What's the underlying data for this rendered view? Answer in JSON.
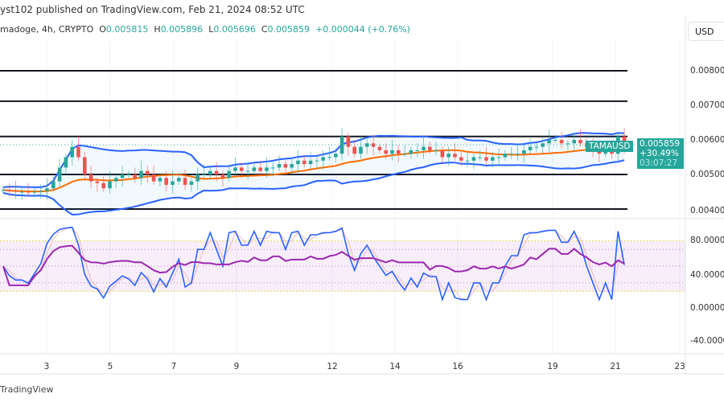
{
  "header": {
    "published": "yst102 published on TradingView.com, Feb 21, 2024 08:52 UTC"
  },
  "legend": {
    "symbol": "madoge, 4h, CRYPTO",
    "o_label": "O",
    "o": "0.005815",
    "h_label": "H",
    "h": "0.005896",
    "l_label": "L",
    "l": "0.005696",
    "c_label": "C",
    "c": "0.005859",
    "change": "+0.000044 (+0.76%)"
  },
  "currency": "USD",
  "price_tag": {
    "symbol": "TAMAUSD",
    "price": "0.005859",
    "change": "+30.49%",
    "countdown": "03:07:27"
  },
  "footer": {
    "brand": "TradingView"
  },
  "colors": {
    "up": "#26a69a",
    "down": "#ef5350",
    "bb": "#2962ff",
    "ma": "#ff6d00",
    "rsi": "#9c27b0",
    "stoch": "#2962ff"
  },
  "chart_data": {
    "type": "candlestick",
    "interval": "4h",
    "price_axis": {
      "ticks": [
        "0.008000",
        "0.007000",
        "0.006000",
        "0.005000",
        "0.004000"
      ],
      "ylim": [
        0.0037,
        0.0088
      ]
    },
    "osc_axis": {
      "ticks": [
        "80.00000",
        "40.00000",
        "0.000000",
        "-40.0000"
      ],
      "ylim": [
        -50,
        110
      ],
      "band": [
        20,
        80
      ]
    },
    "x_ticks": [
      "3",
      "5",
      "7",
      "9",
      "12",
      "14",
      "16",
      "19",
      "21",
      "23"
    ],
    "horizontal_levels": [
      0.008,
      0.00712,
      0.0061,
      0.005,
      0.004
    ],
    "closes": [
      0.00455,
      0.00452,
      0.0045,
      0.0045,
      0.00448,
      0.0045,
      0.00452,
      0.0046,
      0.0048,
      0.0052,
      0.0055,
      0.0058,
      0.0055,
      0.005,
      0.0048,
      0.00475,
      0.0046,
      0.0048,
      0.0049,
      0.005,
      0.005,
      0.0049,
      0.0051,
      0.005,
      0.0048,
      0.0049,
      0.0047,
      0.0048,
      0.0049,
      0.0047,
      0.0048,
      0.005,
      0.005,
      0.0051,
      0.005,
      0.0049,
      0.0051,
      0.0052,
      0.0051,
      0.0051,
      0.0052,
      0.0051,
      0.0052,
      0.0052,
      0.0053,
      0.0052,
      0.0053,
      0.0054,
      0.0053,
      0.0054,
      0.0054,
      0.0055,
      0.0055,
      0.0056,
      0.0061,
      0.0058,
      0.0056,
      0.0058,
      0.0059,
      0.0058,
      0.0057,
      0.0056,
      0.0057,
      0.0056,
      0.0056,
      0.0057,
      0.0057,
      0.0058,
      0.0057,
      0.0057,
      0.0055,
      0.0056,
      0.0055,
      0.0054,
      0.0054,
      0.0055,
      0.0055,
      0.0054,
      0.0055,
      0.0055,
      0.0056,
      0.0056,
      0.0056,
      0.0057,
      0.0058,
      0.0058,
      0.0059,
      0.006,
      0.006,
      0.0059,
      0.0059,
      0.006,
      0.0059,
      0.0058,
      0.0057,
      0.0056,
      0.0057,
      0.0056,
      0.0061,
      0.005859
    ]
  }
}
